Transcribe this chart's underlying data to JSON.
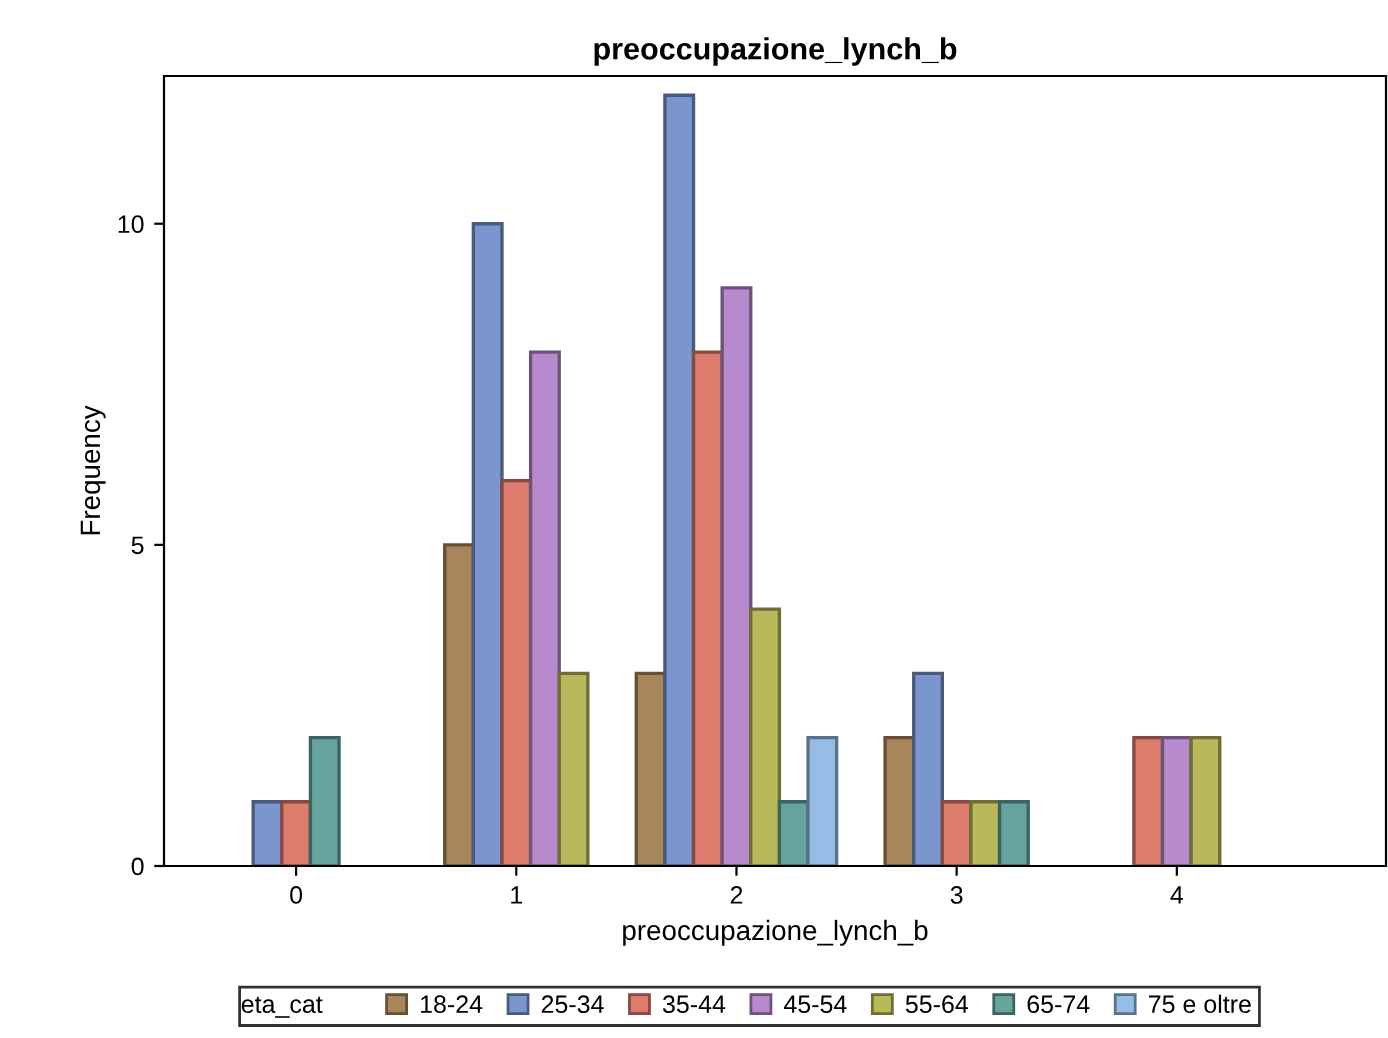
{
  "chart_data": {
    "type": "bar",
    "title": "preoccupazione_lynch_b",
    "xlabel": "preoccupazione_lynch_b",
    "ylabel": "Frequency",
    "legend_title": "eta_cat",
    "legend": "bottom",
    "categories": [
      "0",
      "1",
      "2",
      "3",
      "4"
    ],
    "ylim": [
      0,
      12.3
    ],
    "yticks": [
      0,
      5,
      10
    ],
    "grid": false,
    "series": [
      {
        "name": "18-24",
        "color": "#a8855a",
        "values": [
          null,
          5,
          3,
          2,
          null
        ]
      },
      {
        "name": "25-34",
        "color": "#7b96cf",
        "values": [
          1,
          10,
          12,
          3,
          null
        ]
      },
      {
        "name": "35-44",
        "color": "#dd7b6c",
        "values": [
          1,
          6,
          8,
          1,
          2
        ]
      },
      {
        "name": "45-54",
        "color": "#b68acc",
        "values": [
          null,
          8,
          9,
          null,
          2
        ]
      },
      {
        "name": "55-64",
        "color": "#b8b95a",
        "values": [
          null,
          3,
          4,
          1,
          2
        ]
      },
      {
        "name": "65-74",
        "color": "#66a59d",
        "values": [
          2,
          null,
          1,
          1,
          null
        ]
      },
      {
        "name": "75 e oltre",
        "color": "#96bde6",
        "values": [
          null,
          null,
          2,
          null,
          null
        ]
      }
    ]
  }
}
